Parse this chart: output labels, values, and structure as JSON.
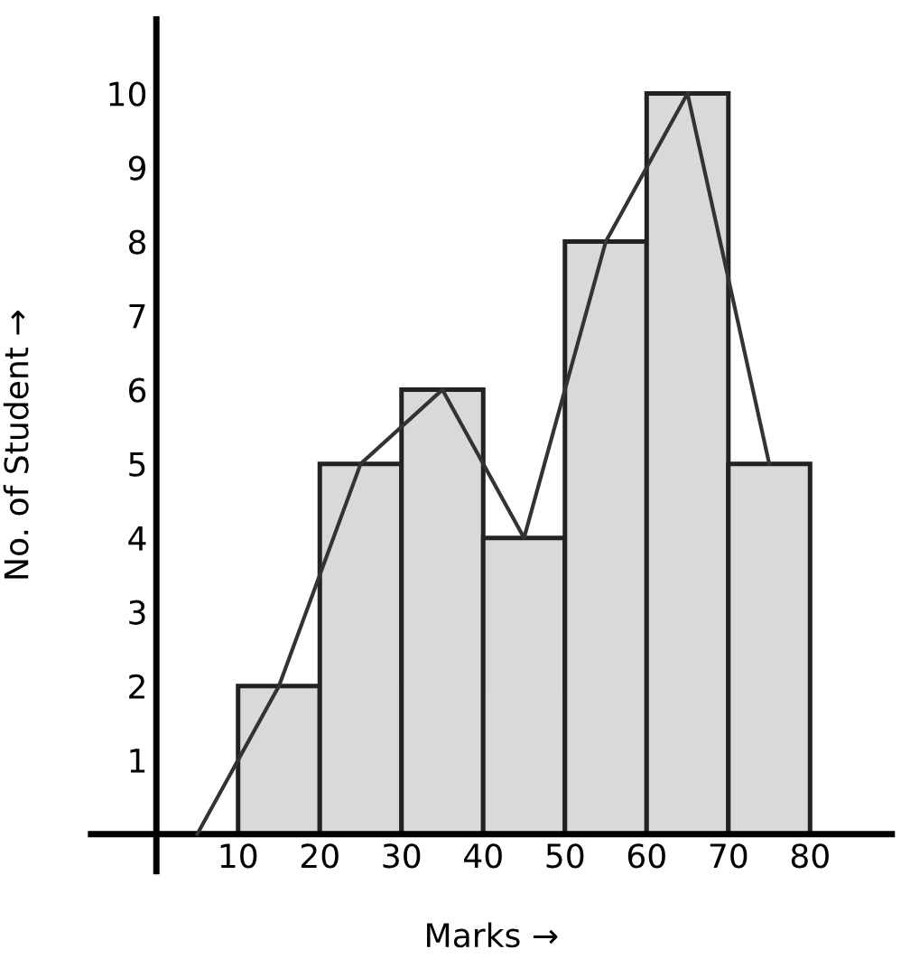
{
  "chart_data": {
    "type": "histogram",
    "xlabel": "Marks →",
    "ylabel": "No. of Student →",
    "bins": [
      10,
      20,
      30,
      40,
      50,
      60,
      70,
      80
    ],
    "values": [
      2,
      5,
      6,
      4,
      8,
      10,
      5
    ],
    "color": "#d9d9d9",
    "series": [
      {
        "type": "line",
        "x": [
          5,
          15,
          25,
          35,
          45,
          55,
          65,
          75
        ],
        "values": [
          0,
          2,
          5,
          6,
          4,
          8,
          10,
          5
        ],
        "color": "#333333"
      }
    ],
    "xlim": [
      -8,
      90
    ],
    "ylim": [
      -0.5,
      11
    ],
    "xticks": [
      10,
      20,
      30,
      40,
      50,
      60,
      70,
      80
    ],
    "yticks": [
      1,
      2,
      3,
      4,
      5,
      6,
      7,
      8,
      9,
      10
    ],
    "grid": false
  }
}
